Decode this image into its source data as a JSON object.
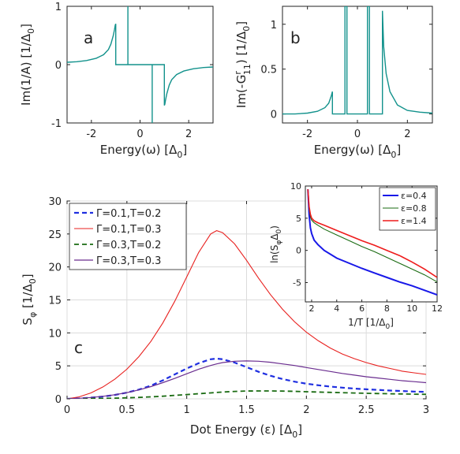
{
  "chart_data": [
    {
      "id": "a",
      "type": "line",
      "panel_label": "a",
      "xlabel": "Energy(ω) [Δ₀]",
      "ylabel": "Im(1/A) [1/Δ₀]",
      "xlim": [
        -3,
        3
      ],
      "ylim": [
        -1,
        1
      ],
      "xticks": [
        -2,
        0,
        2
      ],
      "yticks": [
        -1,
        0,
        1
      ],
      "xtick_labels": [
        "-2",
        "0",
        "2"
      ],
      "ytick_labels": [
        "-1",
        "0",
        "1"
      ],
      "grid": false,
      "color": "#13928c",
      "series": [
        {
          "x": [
            -3.0,
            -2.6,
            -2.2,
            -1.8,
            -1.5,
            -1.3,
            -1.2,
            -1.1,
            -1.05,
            -1.02,
            -1.0,
            -1.0,
            -0.9,
            -0.8,
            -0.7,
            -0.6,
            -0.5,
            -0.5,
            -0.5,
            -0.5,
            -0.4,
            -0.2,
            0.0,
            0.2,
            0.4,
            0.5,
            0.5,
            0.5,
            0.5,
            0.6,
            0.7,
            0.8,
            0.9,
            1.0,
            1.0,
            1.02,
            1.05,
            1.1,
            1.2,
            1.3,
            1.5,
            1.8,
            2.2,
            2.6,
            3.0
          ],
          "y": [
            0.04,
            0.05,
            0.07,
            0.11,
            0.17,
            0.26,
            0.35,
            0.5,
            0.6,
            0.68,
            0.7,
            0.0,
            0.0,
            0.0,
            0.0,
            0.0,
            0.0,
            1.0,
            1.0,
            0.0,
            0.0,
            0.0,
            0.0,
            0.0,
            0.0,
            0.0,
            -1.0,
            -1.0,
            0.0,
            0.0,
            0.0,
            0.0,
            0.0,
            0.0,
            -0.7,
            -0.68,
            -0.6,
            -0.5,
            -0.35,
            -0.26,
            -0.17,
            -0.11,
            -0.07,
            -0.05,
            -0.04
          ]
        }
      ]
    },
    {
      "id": "b",
      "type": "line",
      "panel_label": "b",
      "xlabel": "Energy(ω) [Δ₀]",
      "ylabel": "Im(-Gʳ₁₁) [1/Δ₀]",
      "xlim": [
        -3,
        3
      ],
      "ylim": [
        -0.1,
        1.2
      ],
      "xticks": [
        -2,
        0,
        2
      ],
      "yticks": [
        0,
        0.5,
        1
      ],
      "xtick_labels": [
        "-2",
        "0",
        "2"
      ],
      "ytick_labels": [
        "0",
        "0.5",
        "1"
      ],
      "grid": false,
      "color": "#13928c",
      "series": [
        {
          "x": [
            -3.0,
            -2.5,
            -2.0,
            -1.6,
            -1.3,
            -1.15,
            -1.05,
            -1.0,
            -1.0,
            -0.8,
            -0.6,
            -0.5,
            -0.5,
            -0.42,
            -0.42,
            -0.2,
            0.0,
            0.2,
            0.4,
            0.4,
            0.48,
            0.48,
            0.6,
            0.8,
            1.0,
            1.0,
            1.05,
            1.15,
            1.3,
            1.6,
            2.0,
            2.5,
            3.0
          ],
          "y": [
            0.0,
            0.0,
            0.01,
            0.03,
            0.07,
            0.12,
            0.2,
            0.25,
            0.0,
            0.0,
            0.0,
            0.0,
            1.2,
            1.2,
            0.0,
            0.0,
            0.0,
            0.0,
            0.0,
            1.2,
            1.2,
            0.0,
            0.0,
            0.0,
            0.0,
            1.15,
            0.75,
            0.45,
            0.25,
            0.1,
            0.04,
            0.02,
            0.01
          ]
        }
      ]
    },
    {
      "id": "c",
      "type": "line",
      "panel_label": "c",
      "xlabel": "Dot Energy (ε) [Δ₀]",
      "ylabel": "Sφ [1/Δ₀]",
      "xlim": [
        0,
        3
      ],
      "ylim": [
        0,
        30
      ],
      "xticks": [
        0,
        0.5,
        1,
        1.5,
        2,
        2.5,
        3
      ],
      "yticks": [
        0,
        5,
        10,
        15,
        20,
        25,
        30
      ],
      "xtick_labels": [
        "0",
        "0.5",
        "1",
        "1.5",
        "2",
        "2.5",
        "3"
      ],
      "ytick_labels": [
        "0",
        "5",
        "10",
        "15",
        "20",
        "25",
        "30"
      ],
      "grid": true,
      "legend": "top-left",
      "x": [
        0.0,
        0.1,
        0.2,
        0.3,
        0.4,
        0.5,
        0.6,
        0.7,
        0.8,
        0.9,
        1.0,
        1.1,
        1.2,
        1.25,
        1.3,
        1.4,
        1.5,
        1.6,
        1.7,
        1.8,
        1.9,
        2.0,
        2.1,
        2.2,
        2.3,
        2.4,
        2.5,
        2.6,
        2.7,
        2.8,
        2.9,
        3.0
      ],
      "series": [
        {
          "name": "Γ=0.1,T=0.2",
          "color": "#1f2fe0",
          "dash": "dashed",
          "width": 2.2,
          "values": [
            0.0,
            0.06,
            0.18,
            0.35,
            0.6,
            0.95,
            1.4,
            2.0,
            2.8,
            3.7,
            4.6,
            5.4,
            6.0,
            6.1,
            6.0,
            5.5,
            4.8,
            4.1,
            3.5,
            3.0,
            2.6,
            2.3,
            2.05,
            1.85,
            1.7,
            1.55,
            1.45,
            1.35,
            1.25,
            1.18,
            1.1,
            1.05
          ]
        },
        {
          "name": "Γ=0.1,T=0.3",
          "color": "#e8211f",
          "dash": "solid",
          "width": 1.1,
          "values": [
            0.0,
            0.3,
            0.9,
            1.8,
            3.0,
            4.5,
            6.4,
            8.7,
            11.5,
            14.8,
            18.5,
            22.2,
            25.0,
            25.5,
            25.2,
            23.5,
            21.0,
            18.3,
            15.8,
            13.6,
            11.7,
            10.1,
            8.8,
            7.7,
            6.8,
            6.1,
            5.5,
            5.0,
            4.6,
            4.2,
            3.95,
            3.7
          ]
        },
        {
          "name": "Γ=0.3,T=0.2",
          "color": "#1a6b12",
          "dash": "dashed",
          "width": 1.8,
          "values": [
            0.0,
            0.01,
            0.03,
            0.06,
            0.1,
            0.15,
            0.22,
            0.3,
            0.4,
            0.52,
            0.65,
            0.78,
            0.9,
            0.97,
            1.03,
            1.12,
            1.18,
            1.2,
            1.2,
            1.17,
            1.13,
            1.08,
            1.03,
            0.98,
            0.93,
            0.88,
            0.84,
            0.8,
            0.77,
            0.74,
            0.71,
            0.68
          ]
        },
        {
          "name": "Γ=0.3,T=0.3",
          "color": "#6a2d8f",
          "dash": "solid",
          "width": 1.2,
          "values": [
            0.0,
            0.08,
            0.2,
            0.38,
            0.62,
            0.95,
            1.35,
            1.85,
            2.45,
            3.1,
            3.8,
            4.5,
            5.05,
            5.3,
            5.5,
            5.7,
            5.75,
            5.7,
            5.55,
            5.3,
            5.05,
            4.75,
            4.45,
            4.15,
            3.85,
            3.6,
            3.35,
            3.15,
            2.95,
            2.75,
            2.6,
            2.45
          ]
        }
      ]
    },
    {
      "id": "inset",
      "type": "line",
      "xlabel": "1/T [1/Δ₀]",
      "ylabel": "ln(SφΔ₀)",
      "xlim": [
        1.5,
        12
      ],
      "ylim": [
        -8,
        10
      ],
      "xticks": [
        2,
        4,
        6,
        8,
        10,
        12
      ],
      "yticks": [
        -5,
        0,
        5,
        10
      ],
      "xtick_labels": [
        "2",
        "4",
        "6",
        "8",
        "10",
        "12"
      ],
      "ytick_labels": [
        "-5",
        "0",
        "5",
        "10"
      ],
      "grid": false,
      "legend": "top-right",
      "x": [
        1.7,
        1.8,
        1.9,
        2.0,
        2.2,
        2.5,
        3.0,
        4.0,
        5.0,
        6.0,
        7.0,
        8.0,
        9.0,
        10.0,
        11.0,
        12.0
      ],
      "series": [
        {
          "name": "ε=0.4",
          "color": "#1818e8",
          "width": 2.0,
          "values": [
            9.5,
            5.5,
            3.5,
            2.6,
            1.6,
            0.9,
            0.0,
            -1.2,
            -2.0,
            -2.8,
            -3.5,
            -4.2,
            -4.9,
            -5.5,
            -6.2,
            -6.9
          ]
        },
        {
          "name": "ε=0.8",
          "color": "#1a6b12",
          "width": 1.1,
          "values": [
            9.5,
            6.5,
            5.2,
            4.7,
            4.3,
            3.9,
            3.3,
            2.4,
            1.5,
            0.6,
            -0.2,
            -1.1,
            -2.0,
            -2.9,
            -3.8,
            -4.9
          ]
        },
        {
          "name": "ε=1.4",
          "color": "#ee1c1c",
          "width": 1.6,
          "values": [
            9.5,
            6.8,
            5.6,
            5.0,
            4.6,
            4.3,
            3.9,
            3.1,
            2.3,
            1.5,
            0.8,
            0.0,
            -0.8,
            -1.8,
            -2.9,
            -4.2
          ]
        }
      ]
    }
  ]
}
